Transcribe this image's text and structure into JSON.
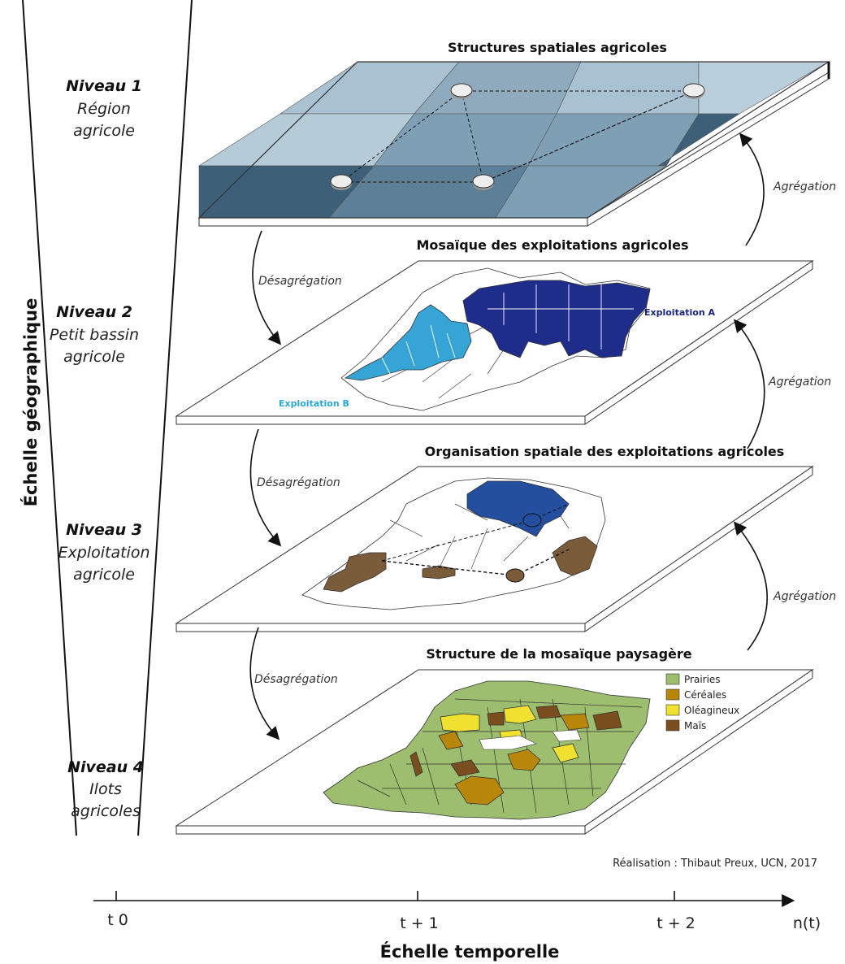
{
  "axes": {
    "vertical_title": "Échelle géographique",
    "horizontal_title": "Échelle temporelle",
    "ticks": [
      "t 0",
      "t + 1",
      "t + 2",
      "n(t)"
    ]
  },
  "levels": [
    {
      "label": "Niveau 1",
      "name_line1": "Région",
      "name_line2": "agricole",
      "plate_title": "Structures spatiales agricoles"
    },
    {
      "label": "Niveau 2",
      "name_line1": "Petit bassin",
      "name_line2": "agricole",
      "plate_title": "Mosaïque des exploitations agricoles"
    },
    {
      "label": "Niveau 3",
      "name_line1": "Exploitation",
      "name_line2": "agricole",
      "plate_title": "Organisation spatiale des exploitations agricoles"
    },
    {
      "label": "Niveau 4",
      "name_line1": "Ilots",
      "name_line2": "agricoles",
      "plate_title": "Structure de la mosaïque paysagère"
    }
  ],
  "arrows": {
    "aggregation": "Agrégation",
    "disaggregation": "Désagrégation"
  },
  "exploitations": {
    "a": "Exploitation A",
    "b": "Exploitation B"
  },
  "legend": [
    {
      "label": "Prairies",
      "color": "#9cbe6e"
    },
    {
      "label": "Céréales",
      "color": "#b8860b"
    },
    {
      "label": "Oléagineux",
      "color": "#f0e030"
    },
    {
      "label": "Maïs",
      "color": "#7a4e1e"
    }
  ],
  "colors": {
    "region_light": "#b9cfdc",
    "region_mid": "#7f9fb5",
    "region_dark": "#3d5f77",
    "expl_a": "#1f2d8a",
    "expl_b": "#36a4d4",
    "expl_blue": "#234f9e",
    "expl_brown": "#7a5c3a",
    "prairie": "#9cbe6e"
  },
  "credit": "Réalisation : Thibaut Preux, UCN, 2017"
}
